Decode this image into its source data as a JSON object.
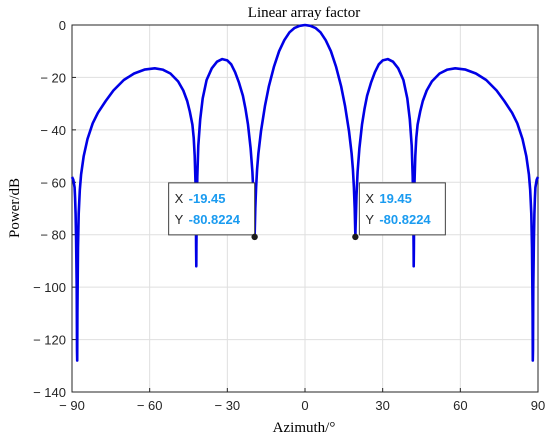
{
  "chart_data": {
    "type": "line",
    "title": "Linear array factor",
    "xlabel": "Azimuth/°",
    "ylabel": "Power/dB",
    "xlim": [
      -90,
      90
    ],
    "ylim": [
      -140,
      0
    ],
    "xticks": [
      -90,
      -60,
      -30,
      0,
      30,
      60,
      90
    ],
    "yticks": [
      0,
      -20,
      -40,
      -60,
      -80,
      -100,
      -120,
      -140
    ],
    "xtick_labels": [
      "− 90",
      "− 60",
      "− 30",
      "0",
      "30",
      "60",
      "90"
    ],
    "ytick_labels": [
      "0",
      "− 20",
      "− 40",
      "− 60",
      "− 80",
      "− 100",
      "− 120",
      "− 140"
    ],
    "grid": true,
    "series": [
      {
        "color": "#0000e6",
        "x": [
          -90,
          -89.5,
          -89,
          -88.8,
          -88.6,
          -88.4,
          -88.2,
          -88.1,
          -88.05,
          -88.0,
          -87.9,
          -87.7,
          -87.4,
          -87.0,
          -86.5,
          -85.5,
          -84,
          -82,
          -80,
          -77,
          -74,
          -70,
          -66,
          -62,
          -58,
          -55,
          -52,
          -49,
          -47,
          -45.5,
          -44.5,
          -43.5,
          -43,
          -42.6,
          -42.3,
          -42.15,
          -42.05,
          -42.0,
          -41.95,
          -41.85,
          -41.6,
          -41.2,
          -40.5,
          -39.5,
          -38,
          -36,
          -34,
          -32,
          -30,
          -28.5,
          -27,
          -25.5,
          -24,
          -23,
          -22,
          -21,
          -20.3,
          -19.9,
          -19.65,
          -19.5,
          -19.45,
          -19.4,
          -19.2,
          -18.9,
          -18.5,
          -18,
          -17,
          -15.5,
          -14,
          -12,
          -10,
          -8,
          -6,
          -4,
          -2,
          0,
          2,
          4,
          6,
          8,
          10,
          12,
          14,
          15.5,
          17,
          18,
          18.5,
          18.9,
          19.2,
          19.4,
          19.45,
          19.5,
          19.65,
          19.9,
          20.3,
          21,
          22,
          23,
          24,
          25.5,
          27,
          28.5,
          30,
          32,
          34,
          36,
          38,
          39.5,
          40.5,
          41.2,
          41.6,
          41.85,
          41.95,
          42.0,
          42.05,
          42.15,
          42.3,
          42.6,
          43,
          43.5,
          44.5,
          45.5,
          47,
          49,
          52,
          55,
          58,
          62,
          66,
          70,
          74,
          77,
          80,
          82,
          84,
          85.5,
          86.5,
          87.0,
          87.4,
          87.7,
          87.9,
          88.0,
          88.05,
          88.1,
          88.2,
          88.4,
          88.6,
          88.8,
          89,
          89.5,
          90
        ],
        "y": [
          -58,
          -59,
          -62,
          -66,
          -72,
          -82,
          -100,
          -115,
          -124,
          -128,
          -110,
          -85,
          -72,
          -63,
          -57,
          -50,
          -43.5,
          -37.5,
          -33.5,
          -29,
          -25,
          -21,
          -18.5,
          -17,
          -16.5,
          -17,
          -18.5,
          -21.5,
          -25,
          -29,
          -33,
          -38,
          -43,
          -50,
          -60,
          -72,
          -85,
          -92,
          -85,
          -72,
          -58,
          -46,
          -36,
          -28,
          -21,
          -16.5,
          -14,
          -13,
          -13.5,
          -15,
          -18,
          -22,
          -27,
          -32,
          -38,
          -47,
          -56,
          -65,
          -73,
          -78,
          -80.8,
          -78,
          -70,
          -62,
          -55,
          -49,
          -40.5,
          -31,
          -23.5,
          -16,
          -10,
          -5.8,
          -2.8,
          -1.1,
          -0.3,
          0,
          -0.3,
          -1.1,
          -2.8,
          -5.8,
          -10,
          -16,
          -23.5,
          -31,
          -40.5,
          -49,
          -55,
          -62,
          -70,
          -78,
          -80.8,
          -78,
          -73,
          -65,
          -56,
          -47,
          -38,
          -32,
          -27,
          -22,
          -18,
          -15,
          -13.5,
          -13,
          -14,
          -16.5,
          -21,
          -28,
          -36,
          -46,
          -58,
          -72,
          -85,
          -92,
          -85,
          -72,
          -60,
          -50,
          -43,
          -38,
          -33,
          -29,
          -25,
          -21.5,
          -18.5,
          -17,
          -16.5,
          -17,
          -18.5,
          -21,
          -25,
          -29,
          -33.5,
          -37.5,
          -43.5,
          -50,
          -57,
          -63,
          -72,
          -85,
          -110,
          -128,
          -124,
          -115,
          -100,
          -82,
          -72,
          -66,
          -62,
          -59,
          -58
        ]
      }
    ],
    "annotations": [
      {
        "x_key": "X",
        "x_value": "-19.45",
        "y_key": "Y",
        "y_value": "-80.8224",
        "x": -19.45,
        "y": -80.8224
      },
      {
        "x_key": "X",
        "x_value": "19.45",
        "y_key": "Y",
        "y_value": "-80.8224",
        "x": 19.45,
        "y": -80.8224
      }
    ]
  }
}
